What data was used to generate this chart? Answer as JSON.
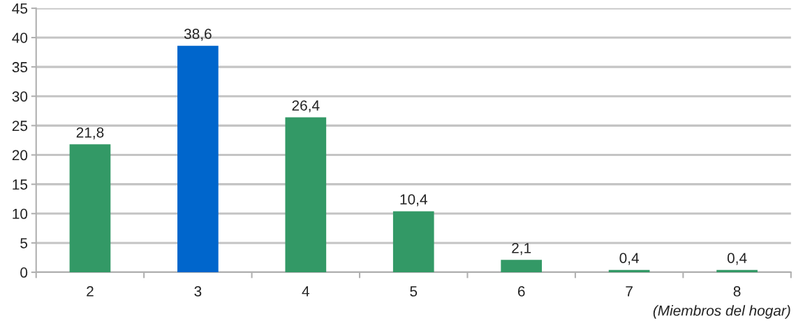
{
  "chart_data": {
    "type": "bar",
    "xlabel": "(Miembros del hogar)",
    "categories": [
      "2",
      "3",
      "4",
      "5",
      "6",
      "7",
      "8"
    ],
    "values": [
      21.8,
      38.6,
      26.4,
      10.4,
      2.1,
      0.4,
      0.4
    ],
    "colors": [
      "#339966",
      "#0066cc",
      "#339966",
      "#339966",
      "#339966",
      "#339966",
      "#339966"
    ],
    "value_labels": [
      "21,8",
      "38,6",
      "26,4",
      "10,4",
      "2,1",
      "0,4",
      "0,4"
    ],
    "ylim": [
      0,
      45
    ],
    "yticks": [
      0,
      5,
      10,
      15,
      20,
      25,
      30,
      35,
      40,
      45
    ],
    "grid": "y",
    "legend": false
  }
}
